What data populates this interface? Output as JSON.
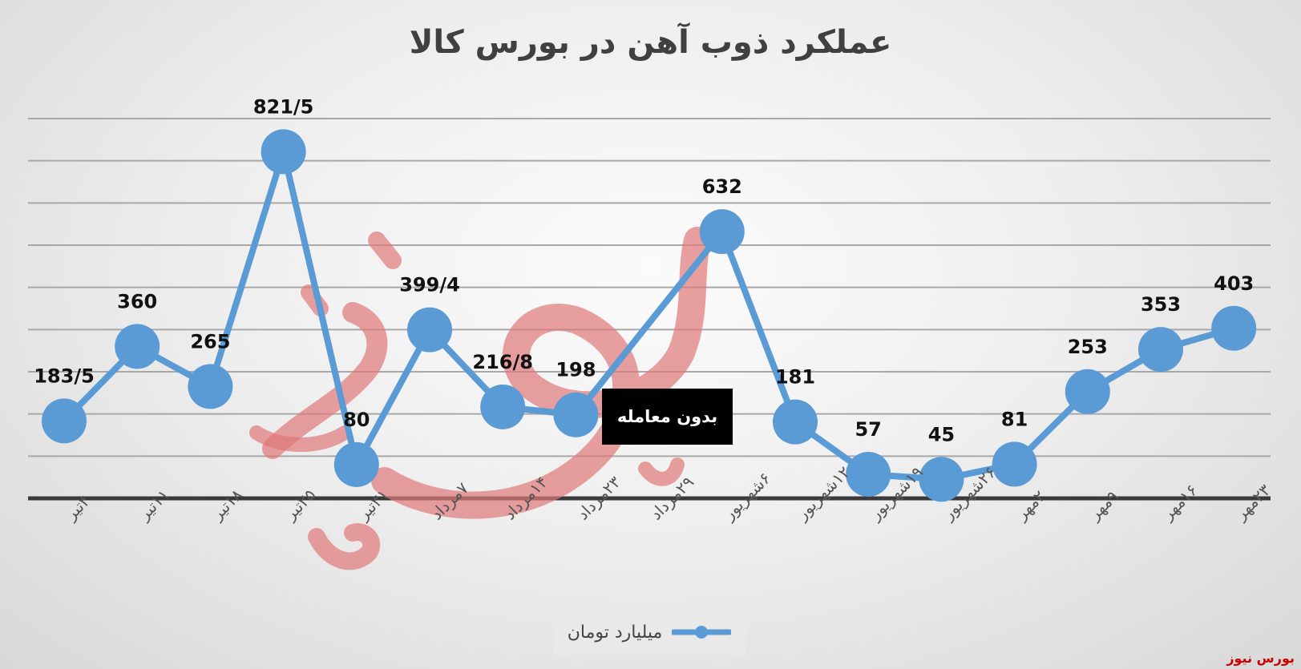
{
  "chart_data": {
    "type": "line",
    "title": "عملکرد ذوب آهن در بورس کالا",
    "categories": [
      "۴تیر",
      "۱۱تیر",
      "۱۸تیر",
      "۲۵تیر",
      "۳۱تیر",
      "۷مرداد",
      "۱۴مرداد",
      "۲۳مرداد",
      "۲۹مرداد",
      "۶شهریور",
      "۱۲شهریور",
      "۱۹شهریور",
      "۲۶شهریور",
      "۲مهر",
      "۹مهر",
      "۱۶مهر",
      "۲۳مهر"
    ],
    "series": [
      {
        "name": "میلیارد تومان",
        "color": "#5b9bd5",
        "points": [
          {
            "x": "۴تیر",
            "y": 183.5,
            "label": "183/5"
          },
          {
            "x": "۱۱تیر",
            "y": 360,
            "label": "360"
          },
          {
            "x": "۱۸تیر",
            "y": 265,
            "label": "265"
          },
          {
            "x": "۲۵تیر",
            "y": 821.5,
            "label": "821/5"
          },
          {
            "x": "۳۱تیر",
            "y": 80,
            "label": "80"
          },
          {
            "x": "۷مرداد",
            "y": 399.4,
            "label": "399/4"
          },
          {
            "x": "۱۴مرداد",
            "y": 216.8,
            "label": "216/8"
          },
          {
            "x": "۲۳مرداد",
            "y": 198,
            "label": "198"
          },
          {
            "x": "۶شهریور",
            "y": 632,
            "label": "632"
          },
          {
            "x": "۱۲شهریور",
            "y": 181,
            "label": "181"
          },
          {
            "x": "۱۹شهریور",
            "y": 57,
            "label": "57"
          },
          {
            "x": "۲۶شهریور",
            "y": 45,
            "label": "45"
          },
          {
            "x": "۲مهر",
            "y": 81,
            "label": "81"
          },
          {
            "x": "۹مهر",
            "y": 253,
            "label": "253"
          },
          {
            "x": "۱۶مهر",
            "y": 353,
            "label": "353"
          },
          {
            "x": "۲۳مهر",
            "y": 403,
            "label": "403"
          }
        ]
      }
    ],
    "ylim": [
      0,
      900
    ],
    "grid": true,
    "legend": "bottom",
    "annotation": "بدون معامله",
    "source": "بورس نیوز",
    "watermark": "بورس نیوز"
  }
}
